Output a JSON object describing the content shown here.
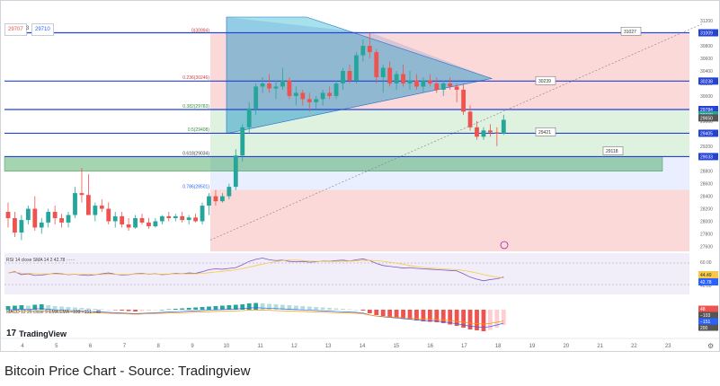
{
  "header": {
    "price_sell": "29707",
    "price_qty": "3",
    "price_buy": "29710"
  },
  "logo_text": "TradingView",
  "caption": "Bitcoin Price Chart - Source: Tradingview",
  "rsi_label": "RSI 14 close SMA 14 2  42.78 ······",
  "macd_label": "MACD 12 26 close 9 EMA EMA  −103 −151 +48",
  "colors": {
    "up": "#26a69a",
    "down": "#ef5350",
    "fib_line": "#2442d4",
    "triangle": "#2ec4b6"
  },
  "chart_data": {
    "type": "candlestick",
    "title": "",
    "x_tick_labels": [
      "4",
      "5",
      "6",
      "7",
      "8",
      "9",
      "10",
      "11",
      "12",
      "13",
      "14",
      "15",
      "16",
      "17",
      "18",
      "19",
      "20",
      "21",
      "22",
      "23"
    ],
    "y_tick_labels": [
      27600,
      27800,
      28000,
      28200,
      28400,
      28600,
      28800,
      29000,
      29200,
      29400,
      29600,
      29800,
      30000,
      30200,
      30400,
      30600,
      30800,
      31000,
      31200
    ],
    "ylim": [
      27520,
      31260
    ],
    "candles": [
      {
        "o": 28150,
        "h": 28300,
        "l": 27900,
        "c": 28050
      },
      {
        "o": 28050,
        "h": 28150,
        "l": 27750,
        "c": 27820
      },
      {
        "o": 27820,
        "h": 28100,
        "l": 27700,
        "c": 28020
      },
      {
        "o": 28020,
        "h": 28250,
        "l": 27950,
        "c": 28200
      },
      {
        "o": 28200,
        "h": 28400,
        "l": 27850,
        "c": 27900
      },
      {
        "o": 27900,
        "h": 28050,
        "l": 27800,
        "c": 27980
      },
      {
        "o": 27980,
        "h": 28200,
        "l": 27900,
        "c": 28150
      },
      {
        "o": 28150,
        "h": 28250,
        "l": 27950,
        "c": 28050
      },
      {
        "o": 28050,
        "h": 28120,
        "l": 27900,
        "c": 27980
      },
      {
        "o": 27980,
        "h": 28150,
        "l": 27900,
        "c": 28100
      },
      {
        "o": 28100,
        "h": 28550,
        "l": 28050,
        "c": 28450
      },
      {
        "o": 28450,
        "h": 28850,
        "l": 28300,
        "c": 28420
      },
      {
        "o": 28420,
        "h": 28750,
        "l": 28100,
        "c": 28100
      },
      {
        "o": 28100,
        "h": 28300,
        "l": 28000,
        "c": 28250
      },
      {
        "o": 28250,
        "h": 28350,
        "l": 28150,
        "c": 28200
      },
      {
        "o": 28200,
        "h": 28300,
        "l": 27950,
        "c": 28000
      },
      {
        "o": 28000,
        "h": 28150,
        "l": 27900,
        "c": 28080
      },
      {
        "o": 28080,
        "h": 28150,
        "l": 27900,
        "c": 27950
      },
      {
        "o": 27950,
        "h": 28050,
        "l": 27850,
        "c": 27900
      },
      {
        "o": 27900,
        "h": 28100,
        "l": 27880,
        "c": 28050
      },
      {
        "o": 28050,
        "h": 28120,
        "l": 27950,
        "c": 27980
      },
      {
        "o": 27980,
        "h": 28050,
        "l": 27880,
        "c": 27920
      },
      {
        "o": 27920,
        "h": 28050,
        "l": 27900,
        "c": 28000
      },
      {
        "o": 28000,
        "h": 28100,
        "l": 27950,
        "c": 28080
      },
      {
        "o": 28080,
        "h": 28150,
        "l": 28000,
        "c": 28050
      },
      {
        "o": 28050,
        "h": 28120,
        "l": 28000,
        "c": 28080
      },
      {
        "o": 28080,
        "h": 28150,
        "l": 27980,
        "c": 28020
      },
      {
        "o": 28020,
        "h": 28100,
        "l": 27950,
        "c": 28060
      },
      {
        "o": 28060,
        "h": 28120,
        "l": 27980,
        "c": 28000
      },
      {
        "o": 28000,
        "h": 28300,
        "l": 27950,
        "c": 28250
      },
      {
        "o": 28250,
        "h": 28450,
        "l": 28100,
        "c": 28400
      },
      {
        "o": 28400,
        "h": 28500,
        "l": 28250,
        "c": 28320
      },
      {
        "o": 28320,
        "h": 28450,
        "l": 28300,
        "c": 28400
      },
      {
        "o": 28400,
        "h": 28600,
        "l": 28350,
        "c": 28550
      },
      {
        "o": 28550,
        "h": 29150,
        "l": 28500,
        "c": 29050
      },
      {
        "o": 29050,
        "h": 29550,
        "l": 28950,
        "c": 29500
      },
      {
        "o": 29500,
        "h": 29900,
        "l": 29400,
        "c": 29800
      },
      {
        "o": 29800,
        "h": 30200,
        "l": 29700,
        "c": 30150
      },
      {
        "o": 30150,
        "h": 30300,
        "l": 30050,
        "c": 30200
      },
      {
        "o": 30200,
        "h": 30350,
        "l": 30050,
        "c": 30120
      },
      {
        "o": 30120,
        "h": 30250,
        "l": 29950,
        "c": 30150
      },
      {
        "o": 30150,
        "h": 30450,
        "l": 30100,
        "c": 30250
      },
      {
        "o": 30250,
        "h": 30300,
        "l": 29950,
        "c": 30000
      },
      {
        "o": 30000,
        "h": 30150,
        "l": 29850,
        "c": 30050
      },
      {
        "o": 30050,
        "h": 30100,
        "l": 29850,
        "c": 29950
      },
      {
        "o": 29950,
        "h": 30050,
        "l": 29750,
        "c": 29900
      },
      {
        "o": 29900,
        "h": 30000,
        "l": 29800,
        "c": 29950
      },
      {
        "o": 29950,
        "h": 30100,
        "l": 29850,
        "c": 30050
      },
      {
        "o": 30050,
        "h": 30150,
        "l": 29950,
        "c": 30000
      },
      {
        "o": 30000,
        "h": 30250,
        "l": 29950,
        "c": 30200
      },
      {
        "o": 30200,
        "h": 30450,
        "l": 30100,
        "c": 30400
      },
      {
        "o": 30400,
        "h": 30500,
        "l": 30200,
        "c": 30250
      },
      {
        "o": 30250,
        "h": 30700,
        "l": 30200,
        "c": 30650
      },
      {
        "o": 30650,
        "h": 30900,
        "l": 30550,
        "c": 30800
      },
      {
        "o": 30800,
        "h": 31000,
        "l": 30600,
        "c": 30700
      },
      {
        "o": 30700,
        "h": 30750,
        "l": 30200,
        "c": 30300
      },
      {
        "o": 30300,
        "h": 30500,
        "l": 30050,
        "c": 30450
      },
      {
        "o": 30450,
        "h": 30550,
        "l": 30150,
        "c": 30200
      },
      {
        "o": 30200,
        "h": 30400,
        "l": 30100,
        "c": 30350
      },
      {
        "o": 30350,
        "h": 30500,
        "l": 30150,
        "c": 30200
      },
      {
        "o": 30200,
        "h": 30400,
        "l": 30100,
        "c": 30250
      },
      {
        "o": 30250,
        "h": 30350,
        "l": 30100,
        "c": 30150
      },
      {
        "o": 30150,
        "h": 30300,
        "l": 30050,
        "c": 30250
      },
      {
        "o": 30250,
        "h": 30350,
        "l": 30150,
        "c": 30200
      },
      {
        "o": 30200,
        "h": 30300,
        "l": 30050,
        "c": 30100
      },
      {
        "o": 30100,
        "h": 30250,
        "l": 30000,
        "c": 30200
      },
      {
        "o": 30200,
        "h": 30300,
        "l": 30100,
        "c": 30150
      },
      {
        "o": 30150,
        "h": 30200,
        "l": 29900,
        "c": 30100
      },
      {
        "o": 30100,
        "h": 30200,
        "l": 29700,
        "c": 29750
      },
      {
        "o": 29750,
        "h": 29850,
        "l": 29450,
        "c": 29500
      },
      {
        "o": 29500,
        "h": 29600,
        "l": 29300,
        "c": 29350
      },
      {
        "o": 29350,
        "h": 29500,
        "l": 29300,
        "c": 29450
      },
      {
        "o": 29450,
        "h": 29550,
        "l": 29350,
        "c": 29420
      },
      {
        "o": 29420,
        "h": 29500,
        "l": 29200,
        "c": 29400
      },
      {
        "o": 29400,
        "h": 29700,
        "l": 29380,
        "c": 29620
      }
    ],
    "fib_levels": [
      {
        "label": "0(30994)",
        "price": 30994
      },
      {
        "label": "0.236(30246)",
        "price": 30246
      },
      {
        "label": "0.382(29783)",
        "price": 29783
      },
      {
        "label": "0.5(29408)",
        "price": 29408
      },
      {
        "label": "0.618(29034)",
        "price": 29034
      },
      {
        "label": "0.786(28501)",
        "price": 28501
      }
    ],
    "callouts": [
      {
        "text": "31027",
        "price": 31027
      },
      {
        "text": "30239",
        "price": 30239
      },
      {
        "text": "29421",
        "price": 29421
      },
      {
        "text": "29118",
        "price": 29118
      }
    ],
    "axis_badges": [
      {
        "text": "31009",
        "price": 31009,
        "color": "#2442d4"
      },
      {
        "text": "30238",
        "price": 30238,
        "color": "#2442d4"
      },
      {
        "text": "29784",
        "price": 29784,
        "color": "#2442d4"
      },
      {
        "text": "29698",
        "price": 29698,
        "color": "#26a69a"
      },
      {
        "text": "29650",
        "price": 29650,
        "color": "#555555"
      },
      {
        "text": "29405",
        "price": 29405,
        "color": "#2442d4"
      },
      {
        "text": "29033",
        "price": 29033,
        "color": "#2442d4"
      }
    ],
    "rsi": {
      "ticks": [
        "60.00",
        "40.00"
      ],
      "badges": [
        {
          "text": "44.49",
          "color": "#f7c948"
        },
        {
          "text": "42.78",
          "color": "#2962ff"
        }
      ],
      "values": [
        52,
        55,
        48,
        50,
        46,
        47,
        49,
        51,
        50,
        48,
        49,
        47,
        46,
        48,
        50,
        52,
        49,
        47,
        48,
        50,
        51,
        49,
        50,
        48,
        49,
        51,
        50,
        52,
        51,
        55,
        60,
        62,
        61,
        63,
        65,
        72,
        80,
        85,
        88,
        84,
        82,
        83,
        80,
        79,
        80,
        78,
        79,
        81,
        80,
        82,
        83,
        81,
        84,
        86,
        82,
        75,
        70,
        68,
        66,
        64,
        65,
        63,
        62,
        61,
        60,
        59,
        58,
        57,
        50,
        42,
        37,
        33,
        36,
        38,
        42
      ]
    },
    "macd": {
      "badges": [
        {
          "text": "48",
          "color": "#ef5350"
        },
        {
          "text": "−103",
          "color": "#555555"
        },
        {
          "text": "−151",
          "color": "#2962ff"
        },
        {
          "text": "200",
          "color": "#555555"
        }
      ],
      "hist": [
        8,
        9,
        10,
        9,
        11,
        12,
        10,
        8,
        7,
        6,
        5,
        4,
        3,
        2,
        1,
        0,
        -1,
        -2,
        -3,
        -4,
        -3,
        -2,
        -1,
        0,
        1,
        2,
        3,
        4,
        5,
        6,
        7,
        8,
        9,
        10,
        11,
        12,
        14,
        15,
        14,
        13,
        12,
        11,
        10,
        9,
        8,
        7,
        6,
        5,
        4,
        3,
        2,
        1,
        0,
        -2,
        -8,
        -12,
        -14,
        -16,
        -18,
        -20,
        -22,
        -24,
        -26,
        -27,
        -28,
        -30,
        -33,
        -36,
        -40,
        -44,
        -46,
        -48,
        -45,
        -40,
        -34
      ]
    }
  }
}
